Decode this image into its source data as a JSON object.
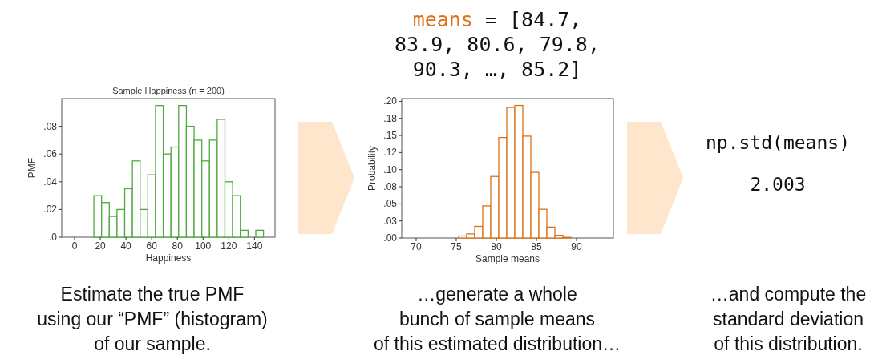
{
  "chart_data": [
    {
      "type": "histogram",
      "title": "Sample Happiness (n = 200)",
      "xlabel": "Happiness",
      "ylabel": "PMF",
      "color": "#4fa83d",
      "bins": [
        15,
        21,
        27,
        33,
        39,
        45,
        51,
        57,
        63,
        69,
        75,
        81,
        87,
        93,
        99,
        105,
        111,
        117,
        123,
        129,
        135,
        141,
        147
      ],
      "values": [
        0.03,
        0.025,
        0.015,
        0.02,
        0.035,
        0.055,
        0.02,
        0.045,
        0.095,
        0.06,
        0.065,
        0.095,
        0.08,
        0.07,
        0.055,
        0.07,
        0.085,
        0.04,
        0.03,
        0.005,
        0,
        0.005
      ],
      "xlim": [
        -10,
        156
      ],
      "ylim": [
        0,
        0.1
      ],
      "xticks": [
        0,
        20,
        40,
        60,
        80,
        100,
        120,
        140
      ],
      "yticks": [
        {
          "value": 0,
          "label": ".0"
        },
        {
          "value": 0.02,
          "label": ".02"
        },
        {
          "value": 0.04,
          "label": ".04"
        },
        {
          "value": 0.06,
          "label": ".06"
        },
        {
          "value": 0.08,
          "label": ".08"
        }
      ],
      "annotations": [
        "Estimate the true PMF\nusing our “PMF” (histogram)\nof our sample."
      ]
    },
    {
      "type": "histogram",
      "xlabel": "Sample means",
      "ylabel": "Probability",
      "color": "#d9731a",
      "bins": [
        69.3,
        70.3,
        71.3,
        72.3,
        73.3,
        74.3,
        75.3,
        76.3,
        77.3,
        78.3,
        79.3,
        80.3,
        81.3,
        82.3,
        83.3,
        84.3,
        85.3,
        86.3,
        87.3,
        88.3,
        89.3,
        90.3,
        91.3,
        92.3,
        93.3
      ],
      "values": [
        0,
        0,
        0,
        0,
        0,
        0,
        0.003,
        0.006,
        0.017,
        0.047,
        0.09,
        0.147,
        0.191,
        0.194,
        0.149,
        0.096,
        0.042,
        0.016,
        0.004,
        0.001,
        0,
        0,
        0,
        0
      ],
      "xlim": [
        68.2,
        94.6
      ],
      "ylim": [
        0,
        0.204
      ],
      "xticks": [
        70,
        75,
        80,
        85,
        90
      ],
      "yticks": [
        {
          "value": 0,
          "label": ".00"
        },
        {
          "value": 0.025,
          "label": ".03"
        },
        {
          "value": 0.05,
          "label": ".05"
        },
        {
          "value": 0.075,
          "label": ".08"
        },
        {
          "value": 0.1,
          "label": ".10"
        },
        {
          "value": 0.125,
          "label": ".12"
        },
        {
          "value": 0.15,
          "label": ".15"
        },
        {
          "value": 0.175,
          "label": ".18"
        },
        {
          "value": 0.2,
          "label": ".20"
        }
      ],
      "annotations": [
        "means = [84.7,\n83.9, 80.6, 79.8,\n90.3, …, 85.2]",
        "…generate a whole\nbunch of sample means\nof this estimated distribution…"
      ]
    },
    {
      "type": "other",
      "annotations": [
        "np.std(means)",
        "2.003",
        "…and compute the\nstandard deviation\nof this distribution."
      ]
    }
  ]
}
